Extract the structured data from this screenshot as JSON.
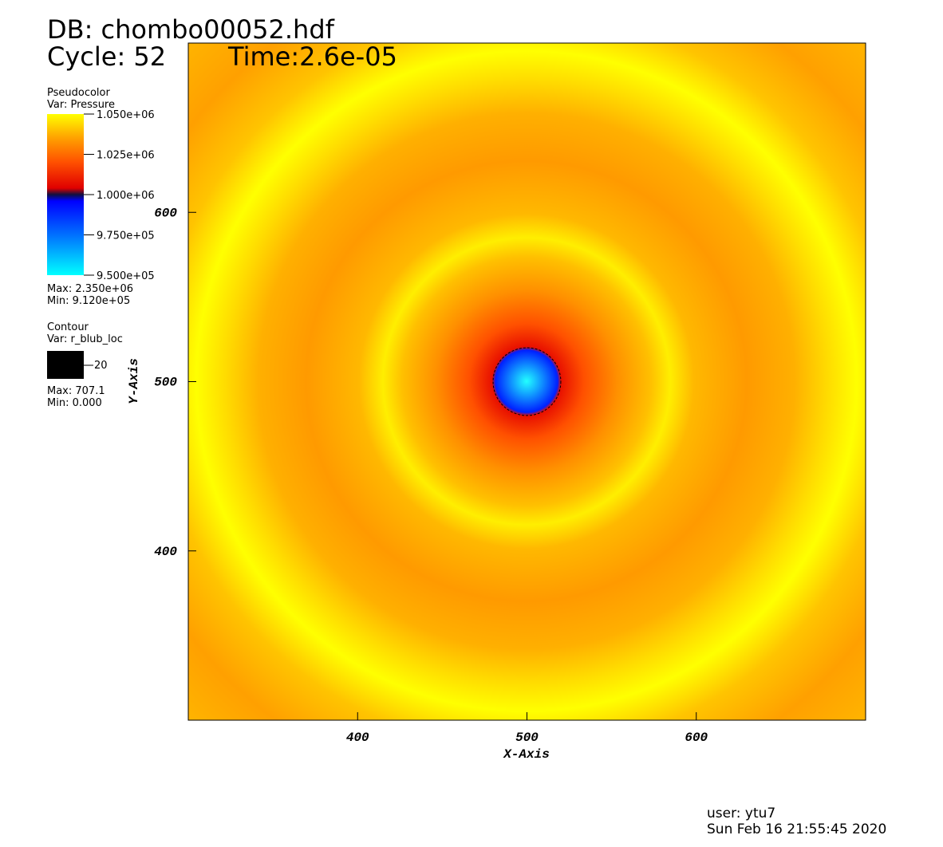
{
  "chart_data": {
    "type": "pseudocolor",
    "title": "DB: chombo00052.hdf",
    "cycle": "Cycle: 52",
    "time": "Time:2.6e-05",
    "x_label": "X-Axis",
    "y_label": "Y-Axis",
    "xlim": [
      300,
      700
    ],
    "xticks": [
      400,
      500,
      600
    ],
    "ylim": [
      300,
      700
    ],
    "yticks": [
      400,
      500,
      600
    ],
    "pseudocolor": {
      "title": "Pseudocolor",
      "var": "Var: Pressure",
      "clim": [
        950000,
        1050000
      ],
      "ticks": [
        {
          "value": 1050000,
          "label": "1.050e+06"
        },
        {
          "value": 1025000,
          "label": "1.025e+06"
        },
        {
          "value": 1000000,
          "label": "1.000e+06"
        },
        {
          "value": 975000,
          "label": "9.750e+05"
        },
        {
          "value": 950000,
          "label": "9.500e+05"
        }
      ],
      "max": "Max: 2.350e+06",
      "min": "Min: 9.120e+05"
    },
    "contour": {
      "title": "Contour",
      "var": "Var: r_blub_loc",
      "levels": [
        20
      ],
      "max": "Max: 707.1",
      "min": "Min: 0.000"
    },
    "user": "user: ytu7",
    "date": "Sun Feb 16 21:55:45 2020"
  }
}
